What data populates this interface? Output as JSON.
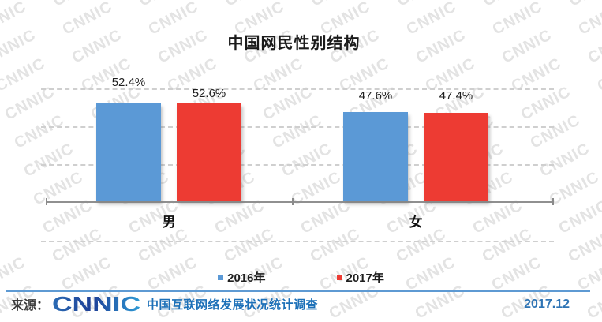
{
  "title": "中国网民性别结构",
  "watermark": {
    "text": "CNNIC"
  },
  "chart_data": {
    "type": "bar",
    "title": "中国网民性别结构",
    "categories": [
      "男",
      "女"
    ],
    "category_slugs": [
      "male",
      "female"
    ],
    "series": [
      {
        "name": "2016年",
        "slug": "2016",
        "color": "#5b99d6",
        "values": [
          52.4,
          47.6
        ]
      },
      {
        "name": "2017年",
        "slug": "2017",
        "color": "#ed3b33",
        "values": [
          52.6,
          47.4
        ]
      }
    ],
    "value_suffix": "%",
    "ylim": [
      0,
      60
    ],
    "grid": true,
    "gridline_style": "dashed",
    "legend_position": "bottom",
    "xlabel": "",
    "ylabel": ""
  },
  "legend": {
    "items": [
      {
        "label": "2016年",
        "color": "#5b99d6"
      },
      {
        "label": "2017年",
        "color": "#ed3b33"
      }
    ]
  },
  "footer": {
    "source_label": "来源：",
    "logo_text": "CNNIC",
    "source_text": "中国互联网络发展状况统计调查",
    "date": "2017.12",
    "accent_color": "#5e9ad3",
    "logo_gradient": [
      "#2b6cb4",
      "#1e3f97",
      "#2e9bd6"
    ]
  }
}
